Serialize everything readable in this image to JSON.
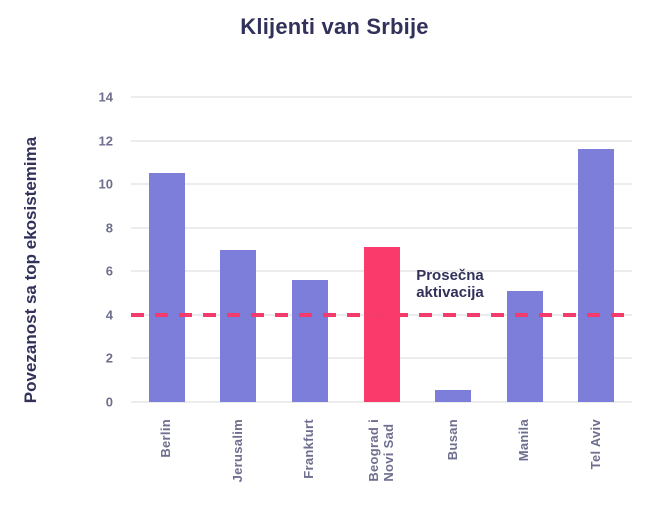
{
  "title": "Klijenti van Srbije",
  "y_axis_title": "Povezanost sa top ekosistemima",
  "annotation": {
    "text": "Prosečna\naktivacija"
  },
  "chart_data": {
    "type": "bar",
    "title": "Klijenti van Srbije",
    "xlabel": "",
    "ylabel": "Povezanost sa top ekosistemima",
    "categories": [
      "Berlin",
      "Jerusalim",
      "Frankfurt",
      "Beograd i\nNovi Sad",
      "Busan",
      "Manila",
      "Tel Aviv"
    ],
    "values": [
      10.5,
      7.0,
      5.6,
      7.1,
      0.55,
      5.1,
      11.6
    ],
    "highlight_index": 3,
    "yticks": [
      0,
      2,
      4,
      6,
      8,
      10,
      12,
      14
    ],
    "ylim": [
      0,
      14
    ],
    "grid": "horizontal",
    "legend": "none",
    "reference_line": {
      "value": 4,
      "label": "Prosečna aktivacija",
      "style": "dashed"
    },
    "colors": {
      "bar": "#7c7ed9",
      "highlight_bar": "#fb3a6c",
      "reference_line": "#f43b6c",
      "title_text": "#31315a",
      "tick_text": "#6e6e8e",
      "gridline": "#ececec",
      "background": "#ffffff"
    }
  }
}
